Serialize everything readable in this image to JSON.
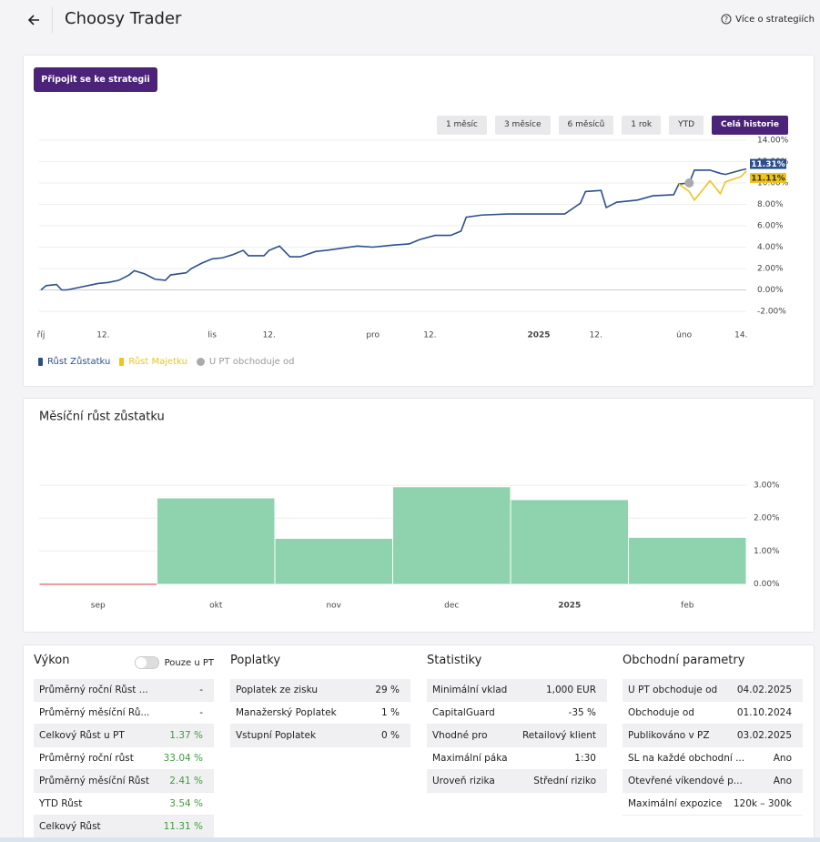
{
  "header": {
    "title": "Choosy Trader",
    "help_link": "Více o strategiích"
  },
  "join_button": "Připojit se ke strategii",
  "range_buttons": {
    "items": [
      "1 měsíc",
      "3 měsíce",
      "6 měsíců",
      "1 rok",
      "YTD",
      "Celá historie"
    ],
    "active": 5
  },
  "charts": [
    {
      "chart_data": {
        "type": "line",
        "x": [
          0,
          1,
          3,
          4,
          5,
          8,
          11,
          13,
          15,
          17,
          18,
          20,
          22,
          24,
          25,
          28,
          29,
          31,
          33,
          35,
          37,
          39,
          40,
          43,
          44,
          46,
          48,
          50,
          53,
          55,
          58,
          61,
          64,
          68,
          71,
          73,
          76,
          79,
          81,
          82,
          85,
          90,
          97,
          101,
          104,
          105,
          108,
          109,
          111,
          115,
          118,
          122,
          123,
          125,
          126,
          129,
          131,
          132,
          135,
          136
        ],
        "series": [
          {
            "name": "Růst Zůstatku",
            "color": "#2c4f8c",
            "end_label": "11.31%",
            "values": [
              0,
              0.4,
              0.5,
              0,
              0,
              0.3,
              0.6,
              0.7,
              0.9,
              1.4,
              1.8,
              1.5,
              1.0,
              0.9,
              1.4,
              1.6,
              2.0,
              2.5,
              2.9,
              3.0,
              3.3,
              3.7,
              3.2,
              3.2,
              3.7,
              4.1,
              3.1,
              3.1,
              3.6,
              3.7,
              3.9,
              4.1,
              4.0,
              4.2,
              4.3,
              4.7,
              5.1,
              5.1,
              5.5,
              6.8,
              7.0,
              7.1,
              7.1,
              7.1,
              8.1,
              9.2,
              9.3,
              7.7,
              8.2,
              8.4,
              8.8,
              8.9,
              9.9,
              10.0,
              11.2,
              11.2,
              10.9,
              10.8,
              11.2,
              11.31
            ]
          },
          {
            "name": "Růst Majetku",
            "color": "#f0c419",
            "end_label": "11.11%",
            "values": [
              null,
              null,
              null,
              null,
              null,
              null,
              null,
              null,
              null,
              null,
              null,
              null,
              null,
              null,
              null,
              null,
              null,
              null,
              null,
              null,
              null,
              null,
              null,
              null,
              null,
              null,
              null,
              null,
              null,
              null,
              null,
              null,
              null,
              null,
              null,
              null,
              null,
              null,
              null,
              null,
              null,
              null,
              null,
              null,
              null,
              null,
              null,
              null,
              null,
              null,
              null,
              null,
              9.9,
              9.2,
              8.4,
              10.2,
              9.0,
              10.1,
              10.6,
              11.11
            ]
          }
        ],
        "marker": {
          "name": "U PT obchoduje od",
          "color": "#aaaaaa",
          "x": 125,
          "y": 10.0
        },
        "xlim": [
          0,
          136
        ],
        "xticks": [
          {
            "value": 0,
            "label": "říj"
          },
          {
            "value": 12,
            "label": "12."
          },
          {
            "value": 33,
            "label": "lis"
          },
          {
            "value": 44,
            "label": "12."
          },
          {
            "value": 64,
            "label": "pro"
          },
          {
            "value": 75,
            "label": "12."
          },
          {
            "value": 96,
            "label": "2025"
          },
          {
            "value": 107,
            "label": "12."
          },
          {
            "value": 124,
            "label": "úno"
          },
          {
            "value": 135,
            "label": "14."
          }
        ],
        "ylim": [
          -2,
          14
        ],
        "yticks": [
          {
            "value": -2,
            "label": "-2.00%"
          },
          {
            "value": 0,
            "label": "0.00%"
          },
          {
            "value": 2,
            "label": "2.00%"
          },
          {
            "value": 4,
            "label": "4.00%"
          },
          {
            "value": 6,
            "label": "6.00%"
          },
          {
            "value": 8,
            "label": "8.00%"
          },
          {
            "value": 10,
            "label": "10.00%"
          },
          {
            "value": 12,
            "label": "12.00%"
          },
          {
            "value": 14,
            "label": "14.00%"
          }
        ],
        "grid": true
      }
    },
    {
      "chart_data": {
        "type": "bar",
        "title": "Měsíční růst zůstatku",
        "categories": [
          "sep",
          "okt",
          "nov",
          "dec",
          "2025",
          "feb"
        ],
        "values": [
          -0.03,
          2.6,
          1.37,
          2.94,
          2.55,
          1.4
        ],
        "colors": [
          "#e05050",
          "#8fd3ae",
          "#8fd3ae",
          "#8fd3ae",
          "#8fd3ae",
          "#8fd3ae"
        ],
        "ylim": [
          -0.1,
          4
        ],
        "yticks": [
          {
            "value": 0,
            "label": "0.00%"
          },
          {
            "value": 1,
            "label": "1.00%"
          },
          {
            "value": 2,
            "label": "2.00%"
          },
          {
            "value": 3,
            "label": "3.00%"
          }
        ],
        "grid": true
      }
    }
  ],
  "panels": [
    {
      "title": "Výkon",
      "toggle": "Pouze u PT",
      "rows": [
        {
          "label": "Průměrný roční Růst ...",
          "value": "-"
        },
        {
          "label": "Průměrný měsíční Rů...",
          "value": "-"
        },
        {
          "label": "Celkový Růst u PT",
          "value": "1.37 %",
          "value_color": "#3f9b3f"
        },
        {
          "label": "Průměrný roční růst",
          "value": "33.04 %",
          "value_color": "#3f9b3f"
        },
        {
          "label": "Průměrný měsíční Růst",
          "value": "2.41 %",
          "value_color": "#3f9b3f"
        },
        {
          "label": "YTD Růst",
          "value": "3.54 %",
          "value_color": "#3f9b3f"
        },
        {
          "label": "Celkový Růst",
          "value": "11.31 %",
          "value_color": "#3f9b3f"
        }
      ]
    },
    {
      "title": "Poplatky",
      "rows": [
        {
          "label": "Poplatek ze zisku",
          "value": "29 %"
        },
        {
          "label": "Manažerský Poplatek",
          "value": "1 %"
        },
        {
          "label": "Vstupní Poplatek",
          "value": "0 %"
        }
      ]
    },
    {
      "title": "Statistiky",
      "rows": [
        {
          "label": "Minimální vklad",
          "value": "1,000 EUR"
        },
        {
          "label": "CapitalGuard",
          "value": "-35 %"
        },
        {
          "label": "Vhodné pro",
          "value": "Retailový klient"
        },
        {
          "label": "Maximální páka",
          "value": "1:30"
        },
        {
          "label": "Uroveň rizika",
          "value": "Střední riziko"
        }
      ]
    },
    {
      "title": "Obchodní parametry",
      "rows": [
        {
          "label": "U PT obchoduje od",
          "value": "04.02.2025"
        },
        {
          "label": "Obchoduje od",
          "value": "01.10.2024"
        },
        {
          "label": "Publikováno v PZ",
          "value": "03.02.2025"
        },
        {
          "label": "SL na každé obchodní ...",
          "value": "Ano"
        },
        {
          "label": "Otevřené víkendové p...",
          "value": "Ano"
        },
        {
          "label": "Maximální expozice",
          "value": "120k – 300k"
        }
      ]
    }
  ]
}
